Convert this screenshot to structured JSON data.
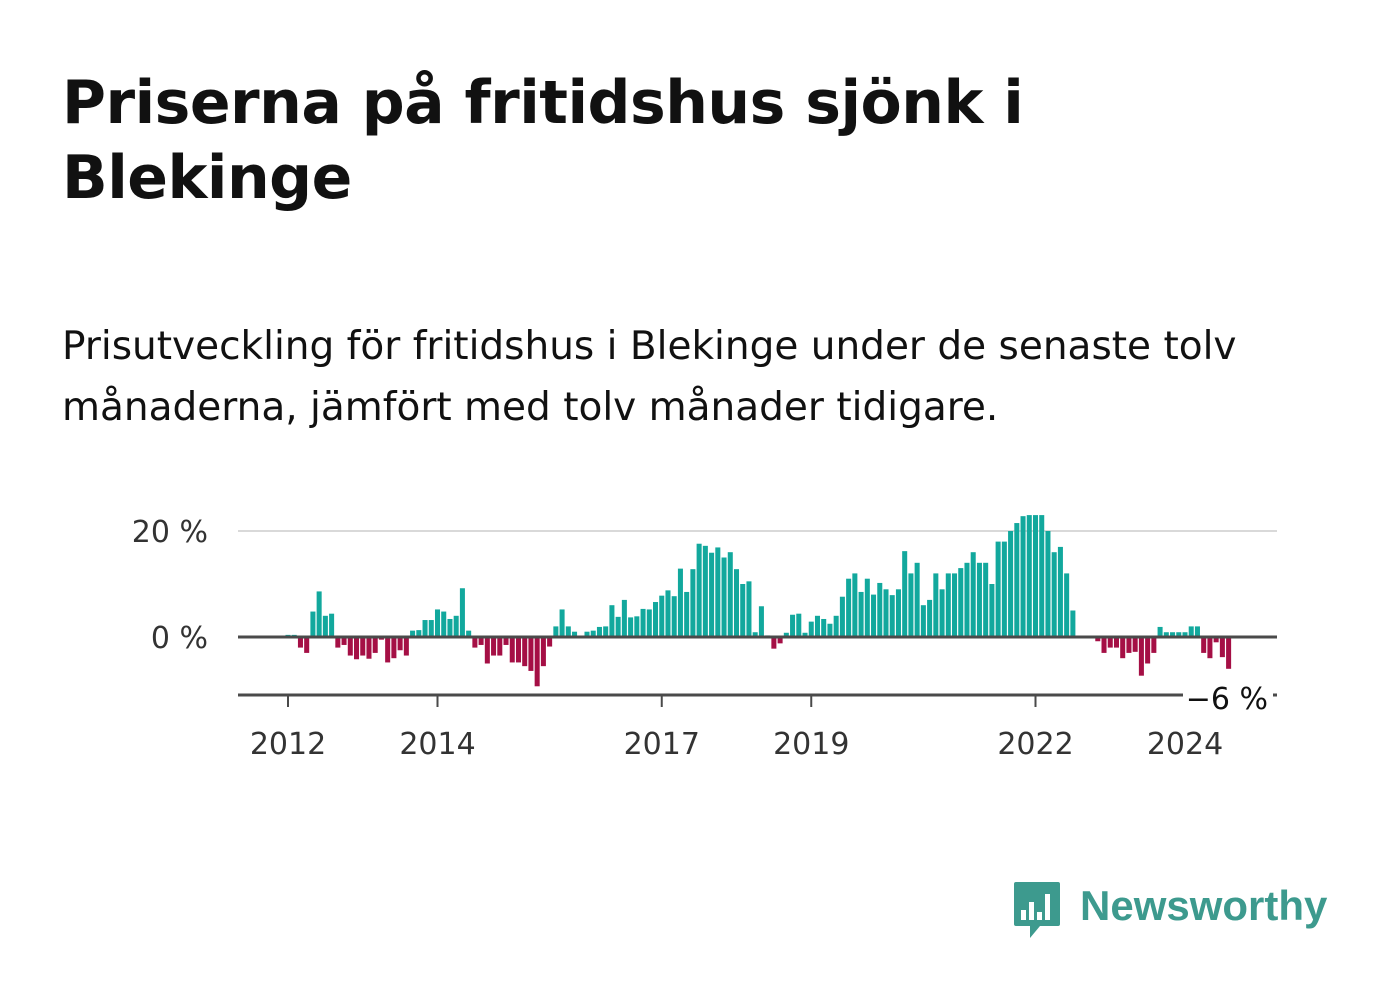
{
  "header": {
    "title": "Priserna på fritidshus sjönk i Blekinge",
    "subtitle": "Prisutveckling för fritidshus i Blekinge under de senaste tolv månaderna, jämfört med tolv månader tidigare."
  },
  "brand": {
    "name": "Newsworthy",
    "color": "#3d9a8e"
  },
  "colors": {
    "positive": "#12a89d",
    "negative": "#a50f45",
    "zero_line": "#4a4a4a",
    "grid": "#d9d9d9",
    "axis": "#4a4a4a"
  },
  "chart_data": {
    "type": "bar",
    "ylim": [
      -11,
      23
    ],
    "yticks": [
      {
        "value": 20,
        "label": "20 %"
      },
      {
        "value": 0,
        "label": "0 %"
      }
    ],
    "xticks": [
      {
        "value": 2012.0,
        "label": "2012"
      },
      {
        "value": 2014.0,
        "label": "2014"
      },
      {
        "value": 2017.0,
        "label": "2017"
      },
      {
        "value": 2019.0,
        "label": "2019"
      },
      {
        "value": 2022.0,
        "label": "2022"
      },
      {
        "value": 2024.0,
        "label": "2024"
      }
    ],
    "start": 2012.0,
    "step": 0.08333333,
    "end_label": "−6 %",
    "values": [
      0.4,
      0.4,
      -2.0,
      -3.0,
      4.8,
      8.6,
      4.0,
      4.4,
      -2.0,
      -1.5,
      -3.5,
      -4.2,
      -3.5,
      -4.1,
      -3.0,
      -0.5,
      -4.8,
      -4.0,
      -2.5,
      -3.5,
      1.2,
      1.3,
      3.2,
      3.2,
      5.2,
      4.8,
      3.4,
      4.0,
      9.2,
      1.2,
      -2.0,
      -1.5,
      -5.0,
      -3.5,
      -3.5,
      -1.5,
      -4.8,
      -4.8,
      -5.5,
      -6.4,
      -9.3,
      -5.5,
      -1.8,
      2.0,
      5.2,
      2.0,
      1.0,
      0.1,
      1.0,
      1.2,
      1.9,
      2.0,
      6.0,
      3.8,
      7.0,
      3.7,
      3.9,
      5.3,
      5.2,
      6.6,
      7.8,
      8.8,
      7.7,
      12.9,
      8.5,
      12.8,
      17.6,
      17.2,
      15.9,
      16.9,
      15.0,
      16.0,
      12.8,
      10.0,
      10.5,
      0.9,
      5.8,
      0.3,
      -2.2,
      -1.2,
      0.8,
      4.2,
      4.4,
      0.8,
      2.9,
      4.0,
      3.4,
      2.5,
      4.0,
      7.6,
      11.0,
      12.0,
      8.5,
      11.0,
      8.0,
      10.2,
      9.0,
      7.9,
      9.0,
      16.2,
      12.0,
      14.0,
      6.0,
      7.0,
      12.0,
      9.0,
      12.0,
      12.0,
      13.0,
      14.0,
      16.0,
      14.0,
      14.0,
      10.0,
      18.0,
      18.0,
      20.0,
      21.5,
      22.8,
      23.0,
      23.0,
      23.0,
      20.0,
      16.0,
      17.0,
      12.0,
      5.0,
      0.0,
      0.0,
      0.0,
      -0.8,
      -3.0,
      -2.0,
      -2.0,
      -4.0,
      -3.0,
      -2.8,
      -7.3,
      -5.0,
      -3.0,
      1.9,
      0.9,
      0.9,
      0.9,
      0.9,
      2.0,
      2.0,
      -3.0,
      -4.0,
      -1.0,
      -3.8,
      -6.0
    ]
  }
}
